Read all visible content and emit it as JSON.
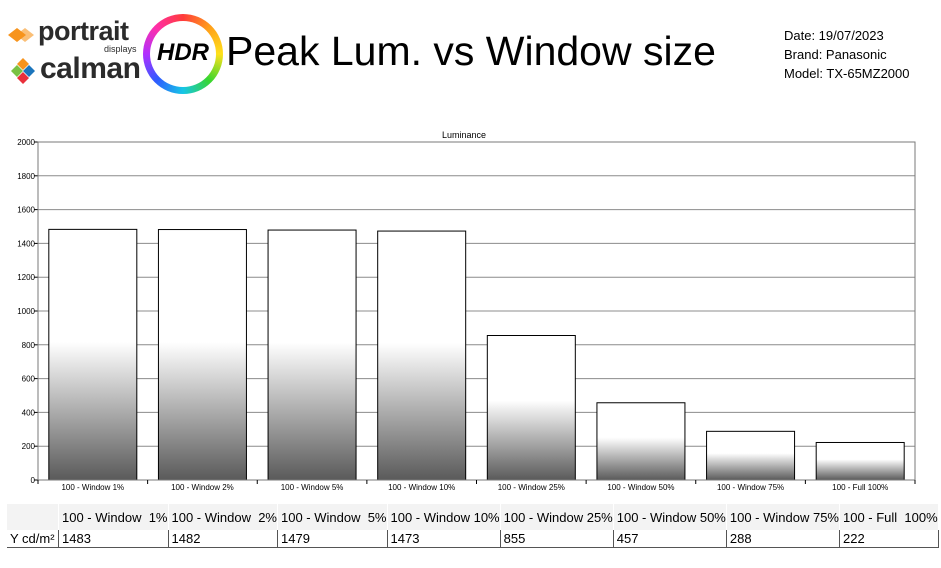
{
  "header": {
    "portrait_word": "portrait",
    "portrait_sub": "displays",
    "calman_word": "calman",
    "hdr_badge": "HDR",
    "title": "Peak Lum. vs Window size",
    "date": "Date: 19/07/2023",
    "brand": "Brand: Panasonic",
    "model": "Model: TX-65MZ2000"
  },
  "colors": {
    "portrait_orange": "#f7941d",
    "calman_green": "#7ac143",
    "calman_blue": "#1c75bc",
    "bar_fill_top": "#ffffff",
    "bar_fill_bottom": "#5a5a5a",
    "grid": "#8c8c8c"
  },
  "chart_data": {
    "type": "bar",
    "title": "Luminance",
    "categories": [
      "100 - Window  1%",
      "100 - Window  2%",
      "100 - Window  5%",
      "100 - Window 10%",
      "100 - Window 25%",
      "100 - Window 50%",
      "100 - Window 75%",
      "100 - Full  100%"
    ],
    "series": [
      {
        "values": [
          1483,
          1482,
          1479,
          1473,
          855,
          457,
          288,
          222
        ]
      }
    ],
    "ylim": [
      0,
      2000
    ],
    "yticks": [
      0,
      200,
      400,
      600,
      800,
      1000,
      1200,
      1400,
      1600,
      1800,
      2000
    ],
    "grid": true,
    "legend": "none"
  },
  "table": {
    "row_label": "Y cd/m²",
    "headers": [
      "100 - Window  1%",
      "100 - Window  2%",
      "100 - Window  5%",
      "100 - Window 10%",
      "100 - Window 25%",
      "100 - Window 50%",
      "100 - Window 75%",
      "100 - Full  100%"
    ],
    "values": [
      "1483",
      "1482",
      "1479",
      "1473",
      "855",
      "457",
      "288",
      "222"
    ]
  }
}
